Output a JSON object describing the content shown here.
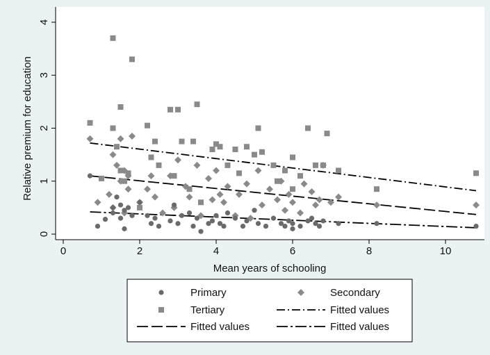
{
  "chart_data": {
    "type": "scatter",
    "xlabel": "Mean years of schooling",
    "ylabel": "Relative premium for education",
    "xlim": [
      0,
      11
    ],
    "ylim": [
      0,
      4
    ],
    "xticks": [
      0,
      2,
      4,
      6,
      8,
      10
    ],
    "yticks": [
      0,
      1,
      2,
      3,
      4
    ],
    "grid": false,
    "legend_position": "bottom",
    "colors": {
      "marker": "#8a8a8a",
      "primary_marker": "#6a6a6a",
      "fit_line": "#000000",
      "plot_background": "#ffffff",
      "outer_background": "#eaf2f3"
    },
    "series": [
      {
        "name": "Primary",
        "kind": "scatter",
        "marker": "circle",
        "x": [
          0.7,
          0.9,
          1.1,
          1.3,
          1.3,
          1.4,
          1.5,
          1.5,
          1.6,
          1.6,
          1.7,
          1.8,
          2.0,
          2.2,
          2.3,
          2.4,
          2.5,
          2.8,
          2.9,
          3.0,
          3.1,
          3.3,
          3.4,
          3.5,
          3.6,
          3.8,
          3.9,
          4.0,
          4.1,
          4.2,
          4.3,
          4.5,
          4.7,
          4.8,
          5.0,
          5.1,
          5.3,
          5.5,
          5.7,
          5.8,
          5.9,
          6.0,
          6.0,
          6.2,
          6.4,
          6.5,
          6.6,
          6.7,
          6.8,
          7.2,
          8.2,
          10.8
        ],
        "y": [
          1.1,
          0.15,
          0.28,
          0.4,
          0.5,
          0.7,
          0.3,
          0.55,
          0.1,
          0.45,
          0.5,
          0.35,
          0.6,
          0.35,
          0.2,
          0.3,
          0.15,
          0.25,
          0.55,
          0.2,
          0.35,
          0.4,
          0.15,
          0.3,
          0.05,
          0.2,
          0.25,
          0.35,
          0.2,
          0.15,
          0.4,
          0.3,
          0.15,
          0.25,
          0.45,
          0.2,
          0.15,
          0.3,
          0.2,
          0.15,
          0.25,
          0.1,
          0.2,
          0.15,
          0.25,
          0.3,
          0.2,
          0.15,
          0.25,
          0.2,
          0.2,
          0.15
        ]
      },
      {
        "name": "Secondary",
        "kind": "scatter",
        "marker": "diamond",
        "x": [
          0.7,
          0.9,
          1.2,
          1.3,
          1.3,
          1.4,
          1.5,
          1.5,
          1.6,
          1.6,
          1.7,
          1.7,
          1.8,
          2.0,
          2.2,
          2.3,
          2.4,
          2.6,
          2.8,
          2.9,
          3.0,
          3.2,
          3.3,
          3.5,
          3.6,
          3.8,
          3.9,
          4.0,
          4.1,
          4.2,
          4.3,
          4.5,
          4.6,
          4.8,
          4.9,
          5.1,
          5.2,
          5.4,
          5.6,
          5.7,
          5.8,
          5.9,
          6.0,
          6.2,
          6.3,
          6.5,
          6.6,
          6.7,
          6.8,
          7.0,
          7.2,
          8.2,
          10.8
        ],
        "y": [
          1.8,
          0.6,
          0.75,
          1.5,
          0.5,
          1.3,
          1.8,
          1.0,
          0.4,
          1.2,
          0.85,
          1.1,
          1.85,
          0.6,
          0.85,
          1.1,
          0.7,
          0.4,
          1.1,
          0.5,
          1.4,
          0.9,
          0.7,
          1.3,
          0.35,
          1.05,
          0.65,
          1.2,
          0.75,
          0.6,
          0.9,
          0.35,
          0.75,
          0.95,
          0.3,
          1.2,
          0.55,
          0.85,
          0.65,
          1.0,
          0.45,
          0.75,
          0.6,
          0.4,
          0.95,
          0.8,
          0.55,
          0.65,
          1.3,
          0.6,
          0.7,
          0.55,
          0.55
        ]
      },
      {
        "name": "Tertiary",
        "kind": "scatter",
        "marker": "square",
        "x": [
          0.7,
          1.0,
          1.3,
          1.3,
          1.4,
          1.5,
          1.5,
          1.6,
          1.7,
          1.8,
          2.0,
          2.2,
          2.3,
          2.4,
          2.5,
          2.8,
          2.9,
          3.0,
          3.1,
          3.3,
          3.4,
          3.5,
          3.6,
          3.9,
          4.0,
          4.1,
          4.3,
          4.5,
          4.6,
          4.8,
          5.0,
          5.1,
          5.2,
          5.5,
          5.6,
          5.8,
          6.0,
          6.0,
          6.2,
          6.4,
          6.6,
          6.8,
          6.9,
          7.2,
          8.2,
          10.8
        ],
        "y": [
          2.1,
          1.05,
          3.7,
          2.0,
          1.65,
          2.4,
          1.2,
          1.0,
          1.15,
          3.3,
          0.5,
          2.05,
          1.45,
          1.75,
          1.3,
          2.35,
          1.1,
          2.35,
          1.75,
          0.85,
          1.75,
          2.45,
          0.6,
          1.6,
          1.7,
          1.65,
          1.3,
          1.6,
          1.15,
          1.65,
          1.5,
          2.0,
          1.55,
          1.3,
          1.0,
          1.2,
          1.45,
          0.85,
          1.1,
          2.0,
          1.3,
          1.3,
          1.9,
          1.2,
          0.85,
          1.15
        ]
      },
      {
        "name": "Fitted values",
        "kind": "line",
        "dash": "dash-dot",
        "x": [
          0.7,
          10.8
        ],
        "y": [
          1.72,
          0.82
        ]
      },
      {
        "name": "Fitted values",
        "kind": "line",
        "dash": "long-dash",
        "x": [
          0.7,
          10.8
        ],
        "y": [
          1.1,
          0.37
        ]
      },
      {
        "name": "Fitted values",
        "kind": "line",
        "dash": "long-dash-dot",
        "x": [
          0.7,
          10.8
        ],
        "y": [
          0.42,
          0.12
        ]
      }
    ],
    "legend": [
      {
        "label": "Primary",
        "symbol": "circle"
      },
      {
        "label": "Secondary",
        "symbol": "diamond"
      },
      {
        "label": "Tertiary",
        "symbol": "square"
      },
      {
        "label": "Fitted values",
        "symbol": "dash-dot"
      },
      {
        "label": "Fitted values",
        "symbol": "long-dash"
      },
      {
        "label": "Fitted values",
        "symbol": "long-dash-dot"
      }
    ]
  }
}
